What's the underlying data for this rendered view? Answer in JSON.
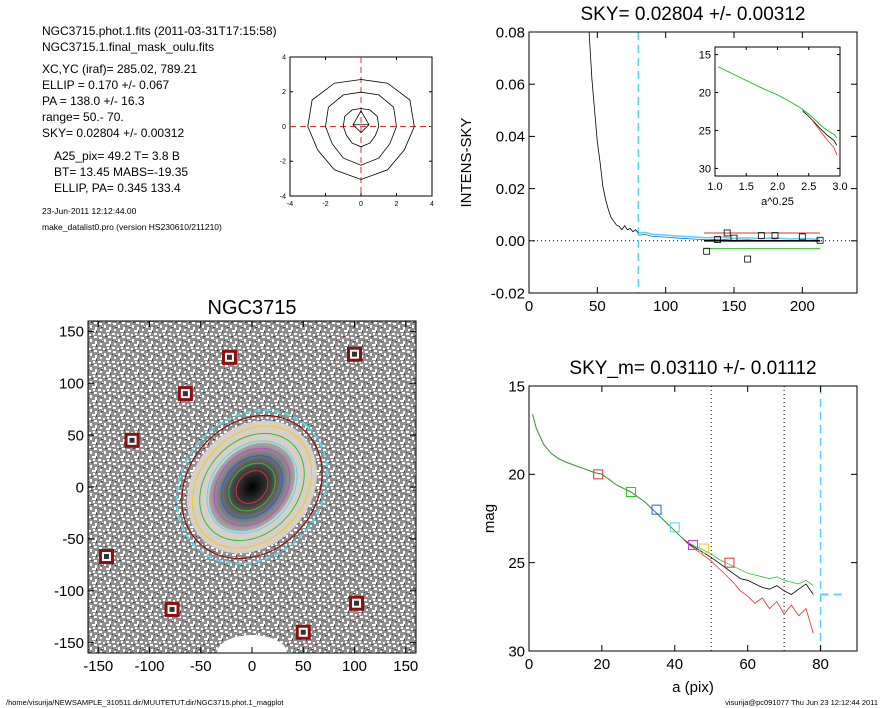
{
  "header": {
    "file_line": "NGC3715.phot.1.fits  (2011-03-31T17:15:58)",
    "mask_line": "NGC3715.1.final_mask_oulu.fits",
    "xcyc": "XC,YC (iraf)=   285.02, 789.21",
    "ellip": "ELLIP = 0.170 +/- 0.067",
    "pa": "PA    = 138.0 +/-  16.3",
    "range": "range=   50.-   70.",
    "sky": "SKY= 0.02804 +/- 0.00312",
    "a25": "A25_pix= 49.2   T= 3.8  B",
    "bt": "BT=  13.45   MABS=-19.35",
    "ellip_pa": "ELLIP, PA= 0.345  133.4",
    "date": "23-Jun-2011 12:12:44.00",
    "program": "make_datalist0.pro (version HS230610/211210)"
  },
  "footer": {
    "path": "/home/visurija/NEWSAMPLE_310511.dir/MUUTETUT.dir/NGC3715.phot.1_magplot",
    "user": "visurija@pc091077  Thu Jun 23 12:12:44 2011"
  },
  "colors": {
    "cyan": "#4fd8f0",
    "red": "#e03030",
    "green": "#30c030",
    "blue": "#2060e0",
    "magenta": "#d040d0",
    "dark_red": "#8b1010"
  },
  "chart_data": [
    {
      "id": "contour_panel",
      "type": "contour",
      "xlim": [
        -4,
        4
      ],
      "ylim": [
        -4,
        4
      ],
      "xticks": [
        "-4",
        "-2",
        "0",
        "2",
        "4"
      ],
      "yticks": [
        "-4",
        "-2",
        "0",
        "2",
        "4"
      ]
    },
    {
      "id": "sky_panel",
      "type": "line",
      "title": "SKY= 0.02804 +/- 0.00312",
      "ylabel": "INTENS-SKY",
      "xlim": [
        0,
        240
      ],
      "ylim": [
        -0.02,
        0.08
      ],
      "xticks": [
        "0",
        "50",
        "100",
        "150",
        "200"
      ],
      "yticks": [
        "-0.02",
        "0.00",
        "0.02",
        "0.04",
        "0.06",
        "0.08"
      ],
      "sky_radius": 80,
      "profile": {
        "x": [
          44,
          46,
          48,
          50,
          52,
          54,
          56,
          58,
          60,
          62,
          64,
          66,
          68,
          70,
          72,
          74,
          76,
          78,
          80,
          85,
          90,
          100,
          110,
          120,
          130,
          140,
          150,
          160,
          170,
          180,
          190,
          200,
          210,
          213
        ],
        "y": [
          0.08,
          0.062,
          0.05,
          0.038,
          0.03,
          0.021,
          0.016,
          0.012,
          0.009,
          0.0075,
          0.006,
          0.0055,
          0.0042,
          0.0058,
          0.0042,
          0.0048,
          0.0035,
          0.0042,
          0.003,
          0.0032,
          0.0025,
          0.0022,
          0.0018,
          0.0015,
          0.0012,
          0.0014,
          0.001,
          0.0012,
          0.0008,
          0.0011,
          0.0007,
          0.0009,
          0.0006,
          0.0008
        ]
      },
      "squares": {
        "x": [
          130,
          138,
          145,
          150,
          160,
          170,
          180,
          200,
          213
        ],
        "y": [
          -0.004,
          0.0005,
          0.003,
          0.001,
          -0.007,
          0.002,
          0.002,
          0.0015,
          0.0002
        ]
      },
      "red_line_y": 0.003,
      "green_line_y": -0.003,
      "black_line_y": 0.0,
      "inset": {
        "xlabel": "a^0.25",
        "xlim": [
          1.0,
          3.0
        ],
        "ylim": [
          31,
          14
        ],
        "xticks": [
          "1.0",
          "1.5",
          "2.0",
          "2.5",
          "3.0"
        ],
        "yticks": [
          "15",
          "20",
          "25",
          "30"
        ],
        "x": [
          1.05,
          1.2,
          1.4,
          1.6,
          1.8,
          2.0,
          2.2,
          2.4,
          2.55,
          2.7,
          2.8,
          2.9,
          2.95
        ],
        "y": [
          16.6,
          17.2,
          18.0,
          18.8,
          19.6,
          20.3,
          21.2,
          22.2,
          23.2,
          24.4,
          25.0,
          25.5,
          26.0
        ]
      }
    },
    {
      "id": "image_panel",
      "type": "image",
      "title": "NGC3715",
      "xlim": [
        -160,
        160
      ],
      "ylim": [
        -160,
        160
      ],
      "xticks": [
        "-150",
        "-100",
        "-50",
        "0",
        "50",
        "100",
        "150"
      ],
      "yticks": [
        "-150",
        "-100",
        "-50",
        "0",
        "50",
        "100",
        "150"
      ],
      "stars": {
        "x": [
          -22,
          100,
          -65,
          -117,
          -142,
          -78,
          102,
          50
        ],
        "y": [
          125,
          128,
          90,
          45,
          -67,
          -118,
          -112,
          -140
        ]
      },
      "ellipse_semimajor": 80,
      "ellipse_ellip": 0.17,
      "ellipse_pa": 138
    },
    {
      "id": "mag_panel",
      "type": "line",
      "title": "SKY_m=  0.03110 +/- 0.01112",
      "xlabel": "a (pix)",
      "ylabel": "mag",
      "xlim": [
        0,
        90
      ],
      "ylim": [
        30,
        15
      ],
      "xticks": [
        "0",
        "20",
        "40",
        "60",
        "80"
      ],
      "yticks": [
        "15",
        "20",
        "25",
        "30"
      ],
      "range_lines": [
        50,
        70
      ],
      "sky_radius": 80,
      "sky_mag": 26.8,
      "x": [
        1,
        2,
        4,
        6,
        8,
        10,
        12,
        14,
        16,
        18,
        20,
        22,
        24,
        26,
        28,
        30,
        32,
        34,
        36,
        38,
        40,
        42,
        44,
        46,
        48,
        50,
        52,
        54,
        56,
        58,
        60,
        62,
        64,
        66,
        68,
        70,
        72,
        74,
        76,
        78
      ],
      "green": [
        16.6,
        17.4,
        18.3,
        18.8,
        19.1,
        19.3,
        19.45,
        19.6,
        19.75,
        19.9,
        20.0,
        20.3,
        20.6,
        20.8,
        21.0,
        21.3,
        21.6,
        22.0,
        22.4,
        22.8,
        23.2,
        23.6,
        23.9,
        24.1,
        24.3,
        24.5,
        24.8,
        25.0,
        25.2,
        25.4,
        25.6,
        25.7,
        25.8,
        25.9,
        25.8,
        26.0,
        26.1,
        26.2,
        26.0,
        26.3
      ],
      "black": [
        16.6,
        17.4,
        18.3,
        18.8,
        19.1,
        19.3,
        19.45,
        19.6,
        19.75,
        19.9,
        20.0,
        20.3,
        20.6,
        20.8,
        21.0,
        21.3,
        21.6,
        22.0,
        22.4,
        22.8,
        23.2,
        23.6,
        23.95,
        24.2,
        24.45,
        24.7,
        25.0,
        25.3,
        25.6,
        25.9,
        26.0,
        26.2,
        26.4,
        26.5,
        26.3,
        26.6,
        26.8,
        26.5,
        26.2,
        26.8
      ],
      "red": [
        16.6,
        17.4,
        18.3,
        18.8,
        19.1,
        19.3,
        19.45,
        19.6,
        19.75,
        19.9,
        20.0,
        20.3,
        20.6,
        20.8,
        21.0,
        21.3,
        21.6,
        22.0,
        22.4,
        22.8,
        23.2,
        23.6,
        24.0,
        24.3,
        24.6,
        24.9,
        25.3,
        25.7,
        26.1,
        26.6,
        26.9,
        27.3,
        27.0,
        27.6,
        27.2,
        27.9,
        27.4,
        28.0,
        27.6,
        29.0
      ],
      "markers": [
        {
          "x": 19,
          "y": 20.0,
          "color": "#e03030"
        },
        {
          "x": 28,
          "y": 21.0,
          "color": "#30c030"
        },
        {
          "x": 35,
          "y": 22.0,
          "color": "#2060e0"
        },
        {
          "x": 40,
          "y": 23.0,
          "color": "#4fd8f0"
        },
        {
          "x": 45,
          "y": 24.0,
          "color": "#d040d0"
        },
        {
          "x": 48,
          "y": 24.2,
          "color": "#e8d020"
        },
        {
          "x": 55,
          "y": 25.0,
          "color": "#e03030"
        }
      ]
    }
  ]
}
